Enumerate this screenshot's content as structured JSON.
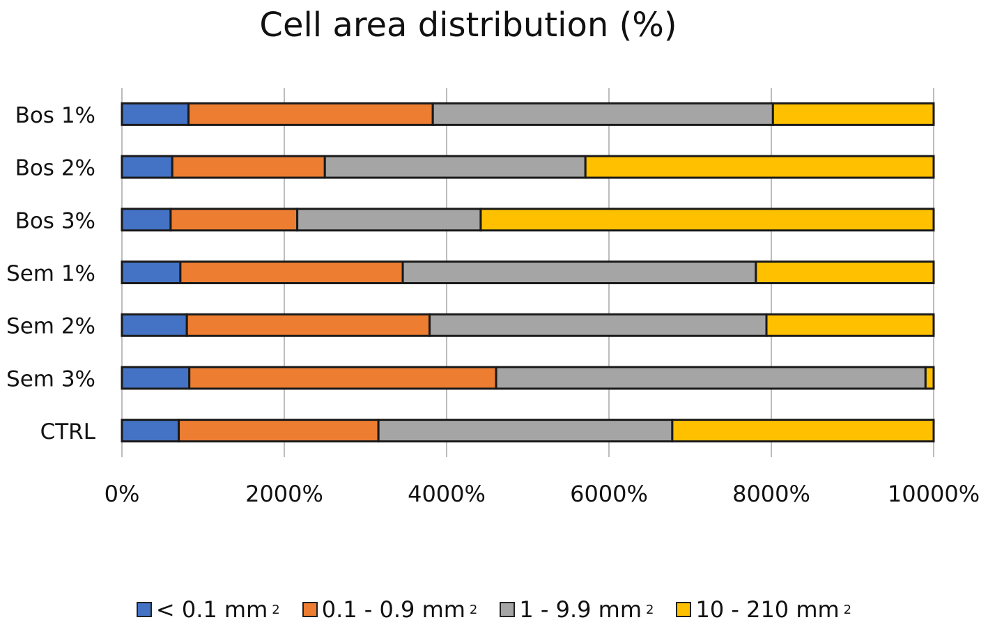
{
  "chart_data": {
    "type": "bar",
    "orientation": "horizontal",
    "stacked": true,
    "title": "Cell area distribution (%)",
    "xlabel": "",
    "ylabel": "",
    "xlim": [
      0,
      10000
    ],
    "xticks": [
      0,
      2000,
      4000,
      6000,
      8000,
      10000
    ],
    "xtick_labels": [
      "0%",
      "2000%",
      "4000%",
      "6000%",
      "8000%",
      "10000%"
    ],
    "grid": true,
    "categories": [
      "Bos 1%",
      "Bos 2%",
      "Bos 3%",
      "Sem 1%",
      "Sem 2%",
      "Sem 3%",
      "CTRL"
    ],
    "series": [
      {
        "name": "< 0.1 mm",
        "sup": "2",
        "color": "#4472C4",
        "values": [
          820,
          620,
          600,
          720,
          800,
          830,
          700
        ]
      },
      {
        "name": "0.1 - 0.9 mm",
        "sup": "2",
        "color": "#ED7D31",
        "values": [
          3010,
          1880,
          1560,
          2740,
          2990,
          3780,
          2460
        ]
      },
      {
        "name": "1 - 9.9 mm",
        "sup": "2",
        "color": "#A5A5A5",
        "values": [
          4190,
          3210,
          2260,
          4350,
          4150,
          5290,
          3620
        ]
      },
      {
        "name": "10 - 210 mm",
        "sup": "2",
        "color": "#FFC000",
        "values": [
          1980,
          4290,
          5580,
          2190,
          2060,
          100,
          3220
        ]
      }
    ],
    "legend_position": "bottom"
  }
}
